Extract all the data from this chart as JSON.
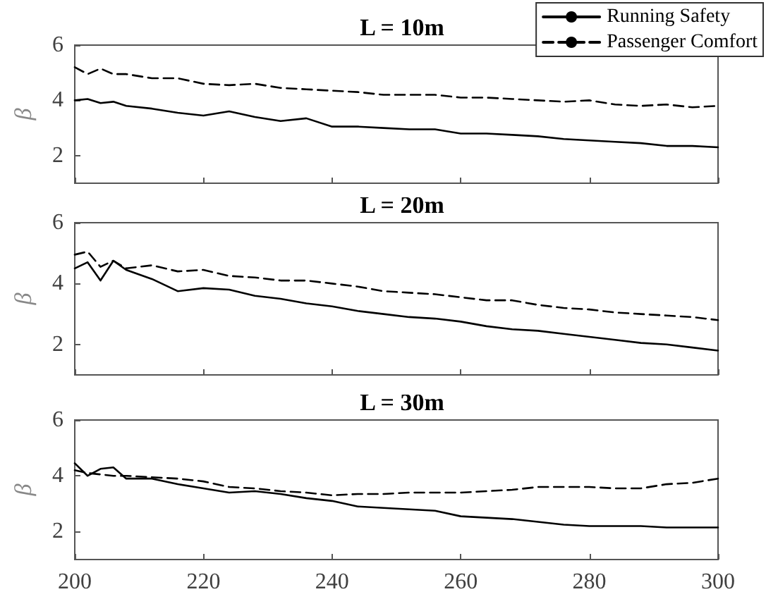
{
  "chart_data": [
    {
      "type": "line",
      "title": "L = 10m",
      "ylabel": "β",
      "legend": "top right",
      "tick_labels": "y",
      "grid": false,
      "xlim": [
        200,
        300
      ],
      "xticks": [
        200,
        220,
        240,
        260,
        280,
        300
      ],
      "ylim": [
        1,
        6
      ],
      "yticks": [
        2,
        4,
        6
      ],
      "x": [
        200,
        202,
        204,
        206,
        208,
        212,
        216,
        220,
        224,
        228,
        232,
        236,
        240,
        244,
        248,
        252,
        256,
        260,
        264,
        268,
        272,
        276,
        280,
        284,
        288,
        292,
        296,
        300
      ],
      "series": [
        {
          "name": "Running Safety",
          "color": "#000000",
          "line_style": "solid",
          "values": [
            4.0,
            4.05,
            3.9,
            3.95,
            3.8,
            3.7,
            3.55,
            3.45,
            3.6,
            3.4,
            3.25,
            3.35,
            3.05,
            3.05,
            3.0,
            2.95,
            2.95,
            2.8,
            2.8,
            2.75,
            2.7,
            2.6,
            2.55,
            2.5,
            2.45,
            2.35,
            2.35,
            2.3
          ]
        },
        {
          "name": "Passenger Comfort",
          "color": "#000000",
          "line_style": "dashed",
          "values": [
            5.2,
            4.95,
            5.15,
            4.95,
            4.95,
            4.8,
            4.8,
            4.6,
            4.55,
            4.6,
            4.45,
            4.4,
            4.35,
            4.3,
            4.2,
            4.2,
            4.2,
            4.1,
            4.1,
            4.05,
            4.0,
            3.95,
            4.0,
            3.85,
            3.8,
            3.85,
            3.75,
            3.8
          ]
        }
      ]
    },
    {
      "type": "line",
      "title": "L = 20m",
      "ylabel": "β",
      "tick_labels": "y",
      "grid": false,
      "xlim": [
        200,
        300
      ],
      "xticks": [
        200,
        220,
        240,
        260,
        280,
        300
      ],
      "ylim": [
        1,
        6
      ],
      "yticks": [
        2,
        4,
        6
      ],
      "x": [
        200,
        202,
        204,
        206,
        208,
        212,
        216,
        220,
        224,
        228,
        232,
        236,
        240,
        244,
        248,
        252,
        256,
        260,
        264,
        268,
        272,
        276,
        280,
        284,
        288,
        292,
        296,
        300
      ],
      "series": [
        {
          "color": "#000000",
          "line_style": "solid",
          "values": [
            4.5,
            4.7,
            4.1,
            4.75,
            4.45,
            4.15,
            3.75,
            3.85,
            3.8,
            3.6,
            3.5,
            3.35,
            3.25,
            3.1,
            3.0,
            2.9,
            2.85,
            2.75,
            2.6,
            2.5,
            2.45,
            2.35,
            2.25,
            2.15,
            2.05,
            2.0,
            1.9,
            1.8
          ]
        },
        {
          "color": "#000000",
          "line_style": "dashed",
          "values": [
            4.95,
            5.05,
            4.55,
            4.75,
            4.5,
            4.6,
            4.4,
            4.45,
            4.25,
            4.2,
            4.1,
            4.1,
            4.0,
            3.9,
            3.75,
            3.7,
            3.65,
            3.55,
            3.45,
            3.45,
            3.3,
            3.2,
            3.15,
            3.05,
            3.0,
            2.95,
            2.9,
            2.8
          ]
        }
      ]
    },
    {
      "type": "line",
      "title": "L = 30m",
      "ylabel": "β",
      "grid": false,
      "xlim": [
        200,
        300
      ],
      "xticks": [
        200,
        220,
        240,
        260,
        280,
        300
      ],
      "ylim": [
        1,
        6
      ],
      "yticks": [
        2,
        4,
        6
      ],
      "x": [
        200,
        202,
        204,
        206,
        208,
        212,
        216,
        220,
        224,
        228,
        232,
        236,
        240,
        244,
        248,
        252,
        256,
        260,
        264,
        268,
        272,
        276,
        280,
        284,
        288,
        292,
        296,
        300
      ],
      "series": [
        {
          "color": "#000000",
          "line_style": "solid",
          "values": [
            4.45,
            4.0,
            4.25,
            4.3,
            3.9,
            3.9,
            3.7,
            3.55,
            3.4,
            3.45,
            3.35,
            3.2,
            3.1,
            2.9,
            2.85,
            2.8,
            2.75,
            2.55,
            2.5,
            2.45,
            2.35,
            2.25,
            2.2,
            2.2,
            2.2,
            2.15,
            2.15,
            2.15
          ]
        },
        {
          "color": "#000000",
          "line_style": "dashed",
          "values": [
            4.2,
            4.1,
            4.05,
            4.0,
            4.0,
            3.95,
            3.9,
            3.8,
            3.6,
            3.55,
            3.45,
            3.4,
            3.3,
            3.35,
            3.35,
            3.4,
            3.4,
            3.4,
            3.45,
            3.5,
            3.6,
            3.6,
            3.6,
            3.55,
            3.55,
            3.7,
            3.75,
            3.9
          ]
        }
      ]
    }
  ]
}
